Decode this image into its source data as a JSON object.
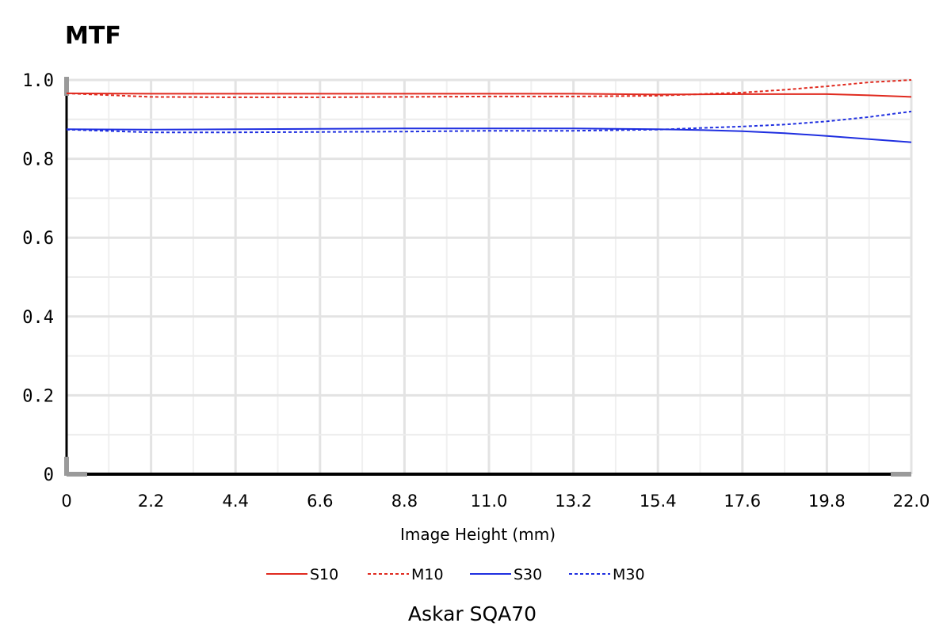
{
  "chart_data": {
    "type": "line",
    "title": "MTF",
    "xlabel": "Image Height (mm)",
    "ylabel": "",
    "caption": "Askar SQA70",
    "xlim": [
      0,
      22.0
    ],
    "ylim": [
      0,
      1.0
    ],
    "x_ticks": [
      "0",
      "2.2",
      "4.4",
      "6.6",
      "8.8",
      "11.0",
      "13.2",
      "15.4",
      "17.6",
      "19.8",
      "22.0"
    ],
    "y_ticks": [
      "0",
      "0.2",
      "0.4",
      "0.6",
      "0.8",
      "1.0"
    ],
    "grid": true,
    "legend_position": "bottom",
    "series": [
      {
        "name": "S10",
        "color": "#e02a1f",
        "style": "solid",
        "x": [
          0,
          2.2,
          4.4,
          6.6,
          8.8,
          11.0,
          13.2,
          15.4,
          17.6,
          19.8,
          20.9,
          22.0
        ],
        "y": [
          0.966,
          0.965,
          0.965,
          0.965,
          0.965,
          0.965,
          0.965,
          0.963,
          0.964,
          0.964,
          0.961,
          0.957
        ]
      },
      {
        "name": "M10",
        "color": "#e02a1f",
        "style": "dotted",
        "x": [
          0,
          2.2,
          4.4,
          6.6,
          8.8,
          11.0,
          13.2,
          15.4,
          17.6,
          18.7,
          19.8,
          20.9,
          22.0
        ],
        "y": [
          0.966,
          0.957,
          0.956,
          0.956,
          0.957,
          0.958,
          0.958,
          0.96,
          0.968,
          0.975,
          0.984,
          0.994,
          1.0
        ]
      },
      {
        "name": "S30",
        "color": "#1f2fe0",
        "style": "solid",
        "x": [
          0,
          2.2,
          4.4,
          6.6,
          8.8,
          11.0,
          13.2,
          15.4,
          16.5,
          17.6,
          18.7,
          19.8,
          20.9,
          22.0
        ],
        "y": [
          0.875,
          0.874,
          0.875,
          0.876,
          0.877,
          0.877,
          0.877,
          0.875,
          0.873,
          0.87,
          0.865,
          0.858,
          0.85,
          0.842
        ]
      },
      {
        "name": "M30",
        "color": "#1f2fe0",
        "style": "dotted",
        "x": [
          0,
          2.2,
          4.4,
          6.6,
          8.8,
          11.0,
          13.2,
          15.4,
          17.6,
          18.7,
          19.8,
          20.9,
          22.0
        ],
        "y": [
          0.874,
          0.867,
          0.867,
          0.868,
          0.869,
          0.871,
          0.871,
          0.874,
          0.882,
          0.887,
          0.895,
          0.906,
          0.92
        ]
      }
    ]
  }
}
